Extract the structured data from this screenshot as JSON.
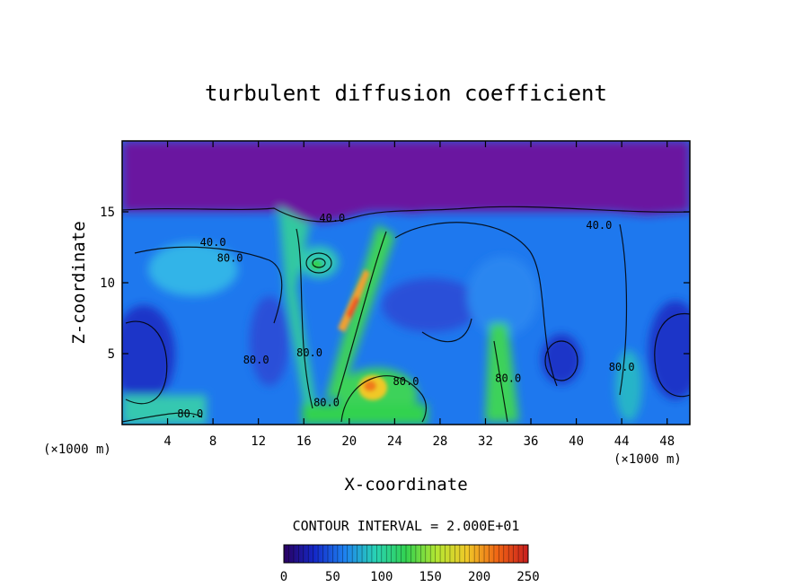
{
  "chart_data": {
    "type": "heatmap",
    "title": "turbulent diffusion coefficient",
    "xlabel": "X-coordinate",
    "ylabel": "Z-coordinate",
    "x_unit": "(×1000 m)",
    "y_unit": "(×1000 m)",
    "xlim": [
      0,
      50
    ],
    "ylim": [
      0,
      20
    ],
    "x_ticks": [
      4,
      8,
      12,
      16,
      20,
      24,
      28,
      32,
      36,
      40,
      44,
      48
    ],
    "y_ticks": [
      5,
      10,
      15
    ],
    "contour_interval_text": "CONTOUR INTERVAL = 2.000E+01",
    "colorbar": {
      "min": 0,
      "max": 250,
      "ticks": [
        0,
        50,
        100,
        150,
        200,
        250
      ],
      "colors": [
        "#2a0060",
        "#1428c8",
        "#1e82f0",
        "#28d2b4",
        "#32d250",
        "#b4e632",
        "#f0c828",
        "#f06414",
        "#c81e1e"
      ]
    },
    "contour_labels": [
      {
        "text": "40.0",
        "x": 8.0,
        "y": 12.6
      },
      {
        "text": "80.0",
        "x": 9.5,
        "y": 11.5
      },
      {
        "text": "40.0",
        "x": 18.5,
        "y": 14.3
      },
      {
        "text": "40.0",
        "x": 42.0,
        "y": 13.8
      },
      {
        "text": "80.0",
        "x": 11.8,
        "y": 4.3
      },
      {
        "text": "80.0",
        "x": 16.5,
        "y": 4.8
      },
      {
        "text": "80.0",
        "x": 25.0,
        "y": 2.8
      },
      {
        "text": "80.0",
        "x": 18.0,
        "y": 1.3
      },
      {
        "text": "80.0",
        "x": 34.0,
        "y": 3.0
      },
      {
        "text": "80.0",
        "x": 44.0,
        "y": 3.8
      },
      {
        "text": "80.0",
        "x": 6.0,
        "y": 0.5
      }
    ]
  }
}
